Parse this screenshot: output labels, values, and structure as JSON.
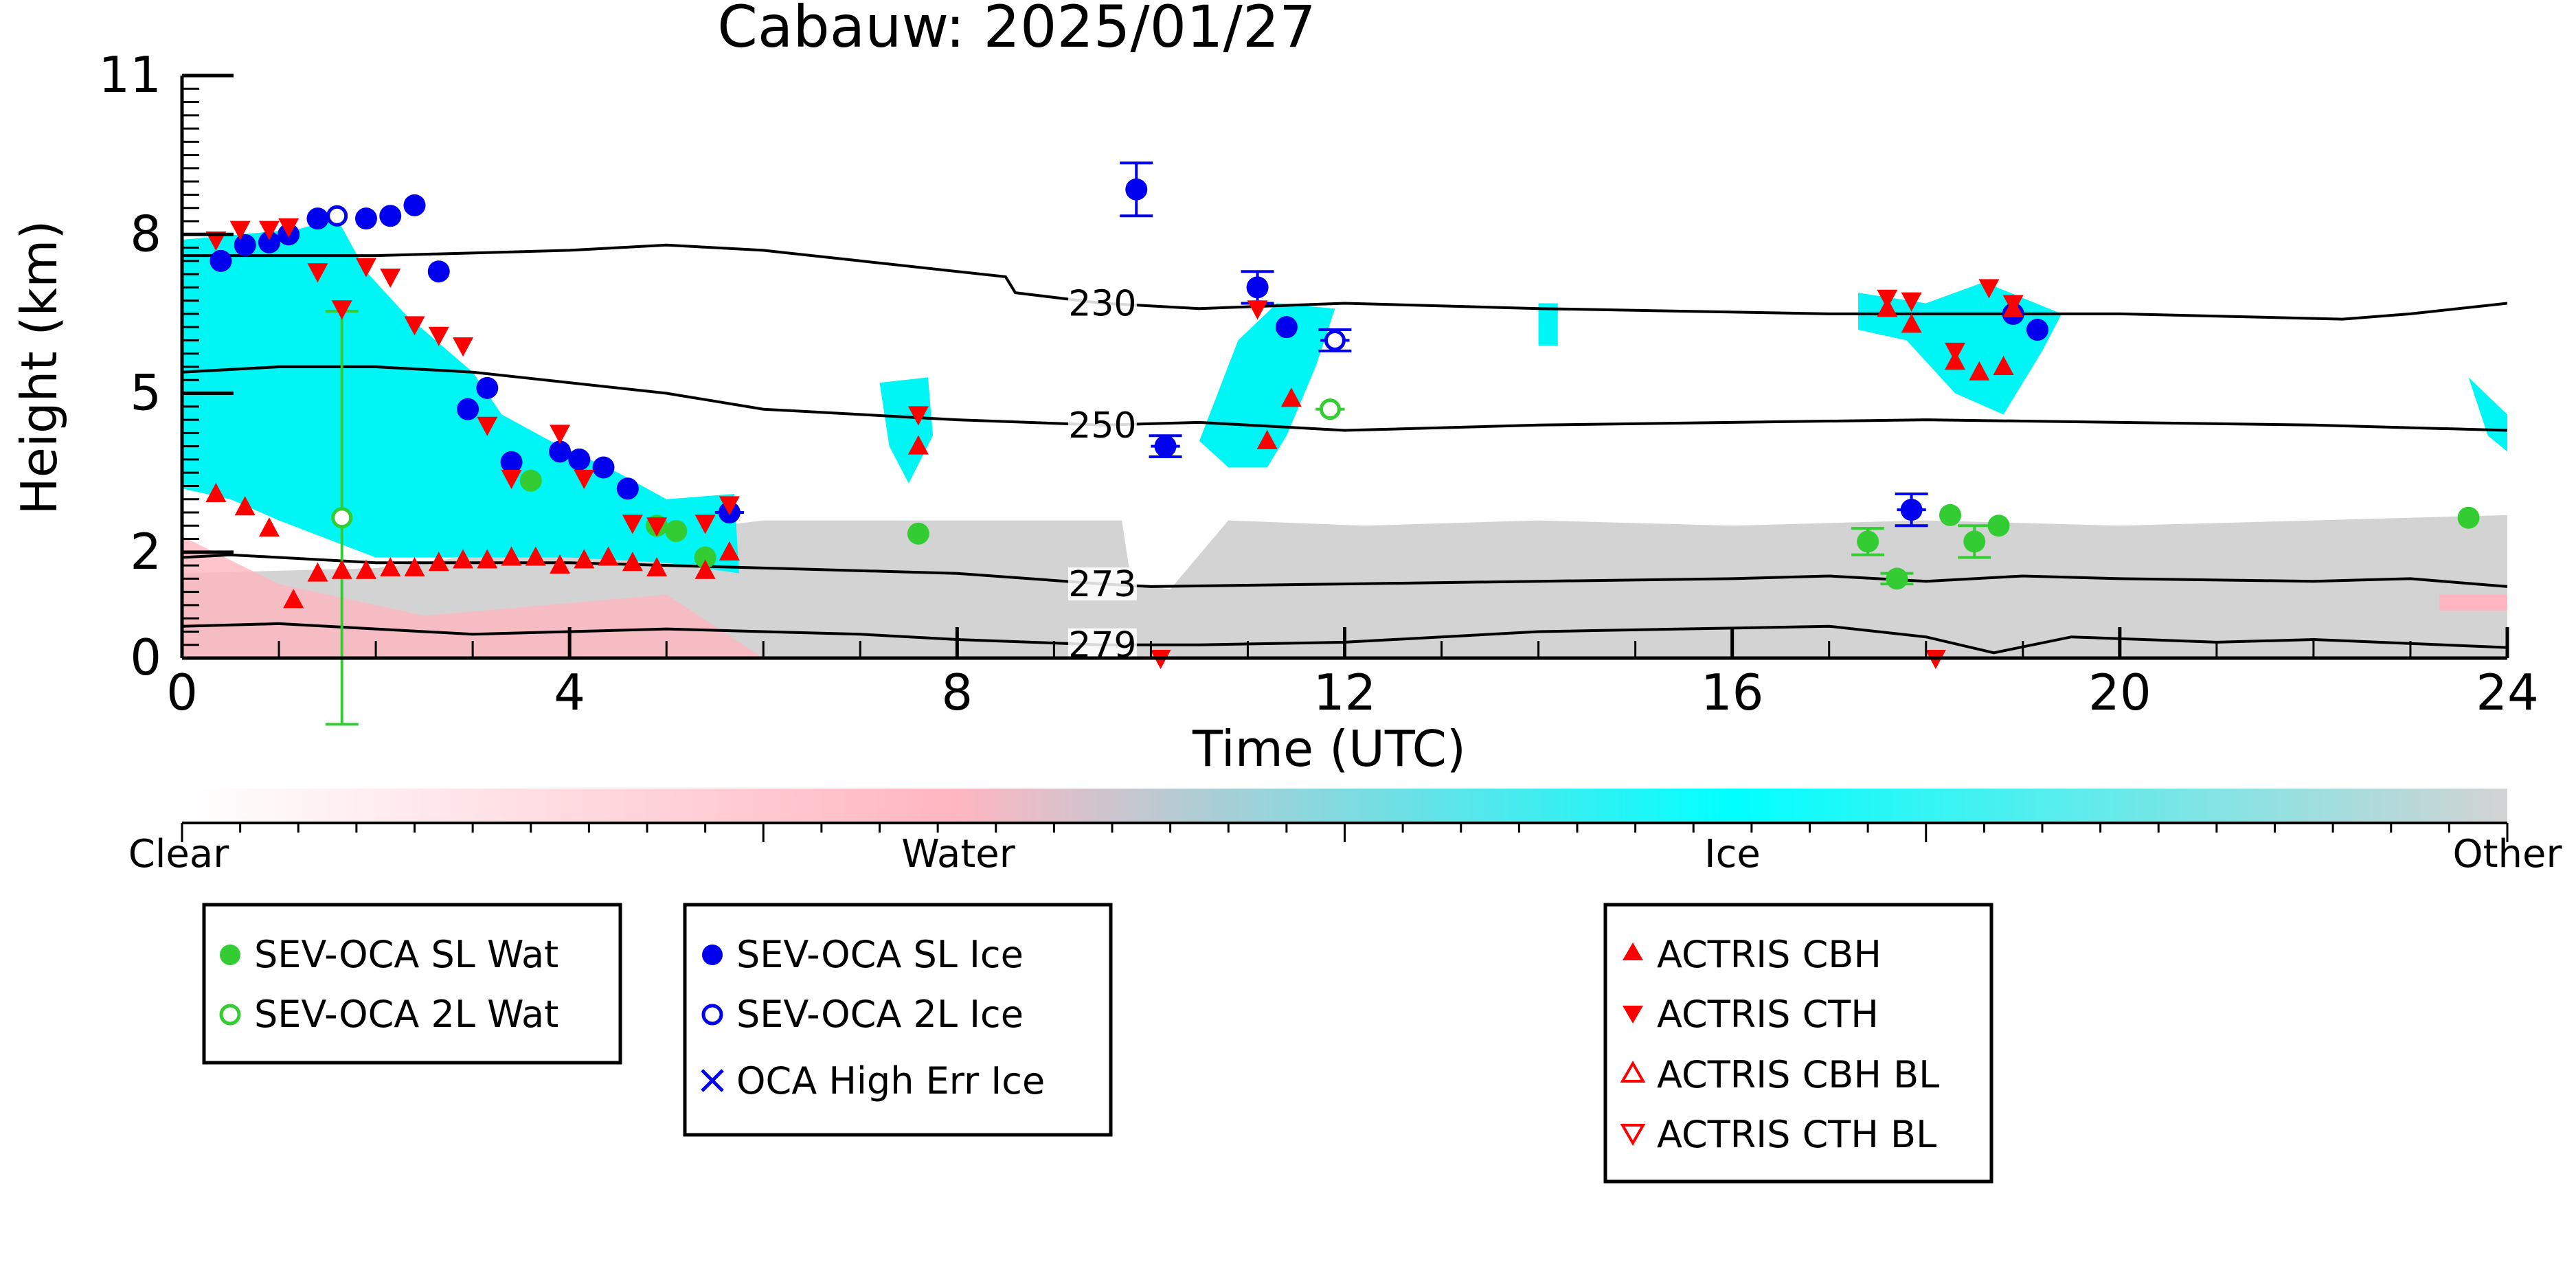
{
  "chart_data": {
    "type": "scatter",
    "title": "Cabauw: 2025/01/27",
    "xlabel": "Time (UTC)",
    "ylabel": "Height (km)",
    "xlim": [
      0,
      24
    ],
    "ylim": [
      0,
      11
    ],
    "x_ticks": [
      0,
      4,
      8,
      12,
      16,
      20,
      24
    ],
    "y_ticks": [
      0,
      2,
      5,
      8,
      11
    ],
    "x_tick_labels": [
      "0",
      "4",
      "8",
      "12",
      "16",
      "20",
      "24"
    ],
    "y_tick_labels": [
      "0",
      "2",
      "5",
      "8",
      "11"
    ],
    "colorbar": {
      "labels": [
        "Clear",
        "Water",
        "Ice",
        "Other"
      ],
      "colors": [
        "#ffffff",
        "#ffb6c1",
        "#00ffff",
        "#d3d3d3"
      ]
    },
    "colors": {
      "sl_wat": "#33cc33",
      "sl_ice": "#0000ee",
      "actris": "#ff0000",
      "ice_fill": "#00f5f5",
      "other_fill": "#d3d3d3",
      "water_fill": "#ffb6c1"
    },
    "isotherm_labels": [
      "230",
      "250",
      "273",
      "279"
    ],
    "isotherms": [
      {
        "label": "230",
        "label_x": 9.5,
        "points": [
          [
            0,
            7.6
          ],
          [
            2,
            7.6
          ],
          [
            4,
            7.7
          ],
          [
            5,
            7.8
          ],
          [
            6,
            7.7
          ],
          [
            7,
            7.5
          ],
          [
            8.5,
            7.2
          ],
          [
            8.6,
            6.9
          ],
          [
            9.5,
            6.7
          ],
          [
            10.5,
            6.6
          ],
          [
            12,
            6.7
          ],
          [
            14,
            6.6
          ],
          [
            17,
            6.5
          ],
          [
            18,
            6.5
          ],
          [
            20,
            6.5
          ],
          [
            22.3,
            6.4
          ],
          [
            23,
            6.5
          ],
          [
            24,
            6.7
          ]
        ]
      },
      {
        "label": "250",
        "label_x": 9.5,
        "points": [
          [
            0,
            5.4
          ],
          [
            1,
            5.5
          ],
          [
            2,
            5.5
          ],
          [
            3,
            5.4
          ],
          [
            4,
            5.2
          ],
          [
            5,
            5.0
          ],
          [
            6,
            4.7
          ],
          [
            7,
            4.6
          ],
          [
            8,
            4.5
          ],
          [
            9.5,
            4.4
          ],
          [
            10.5,
            4.45
          ],
          [
            12,
            4.3
          ],
          [
            14,
            4.4
          ],
          [
            16,
            4.45
          ],
          [
            18,
            4.5
          ],
          [
            20,
            4.45
          ],
          [
            22,
            4.4
          ],
          [
            24,
            4.3
          ]
        ]
      },
      {
        "label": "273",
        "label_x": 9.5,
        "points": [
          [
            0,
            1.9
          ],
          [
            0.5,
            1.95
          ],
          [
            2,
            1.8
          ],
          [
            4,
            1.8
          ],
          [
            6,
            1.7
          ],
          [
            8,
            1.6
          ],
          [
            9.5,
            1.4
          ],
          [
            10,
            1.35
          ],
          [
            12,
            1.4
          ],
          [
            14,
            1.45
          ],
          [
            16,
            1.5
          ],
          [
            17,
            1.55
          ],
          [
            18,
            1.45
          ],
          [
            19,
            1.55
          ],
          [
            20,
            1.5
          ],
          [
            22,
            1.45
          ],
          [
            23,
            1.5
          ],
          [
            24,
            1.35
          ]
        ]
      },
      {
        "label": "279",
        "label_x": 9.5,
        "points": [
          [
            0,
            0.6
          ],
          [
            1,
            0.65
          ],
          [
            2,
            0.55
          ],
          [
            3,
            0.45
          ],
          [
            4,
            0.5
          ],
          [
            5,
            0.55
          ],
          [
            6,
            0.5
          ],
          [
            7,
            0.45
          ],
          [
            8,
            0.35
          ],
          [
            9.5,
            0.25
          ],
          [
            10.5,
            0.25
          ],
          [
            12,
            0.3
          ],
          [
            14,
            0.5
          ],
          [
            17,
            0.6
          ],
          [
            18,
            0.4
          ],
          [
            18.7,
            0.1
          ],
          [
            19.5,
            0.4
          ],
          [
            21,
            0.3
          ],
          [
            22,
            0.35
          ],
          [
            24,
            0.2
          ]
        ]
      }
    ],
    "series": [
      {
        "name": "SEV-OCA SL Wat",
        "marker": "circle",
        "filled": true,
        "color": "#33cc33",
        "points": [
          [
            3.6,
            3.35,
            0.1,
            0
          ],
          [
            4.9,
            2.5,
            0,
            0
          ],
          [
            5.1,
            2.4,
            0,
            0
          ],
          [
            5.4,
            1.9,
            0.1,
            0
          ],
          [
            7.6,
            2.35,
            0,
            0
          ],
          [
            17.4,
            2.2,
            0,
            0.25
          ],
          [
            17.7,
            1.5,
            0,
            0.1
          ],
          [
            18.25,
            2.7,
            0,
            0
          ],
          [
            18.5,
            2.2,
            0,
            0.3
          ],
          [
            18.75,
            2.5,
            0,
            0
          ],
          [
            23.6,
            2.65,
            0,
            0
          ]
        ]
      },
      {
        "name": "SEV-OCA 2L Wat",
        "marker": "circle",
        "filled": false,
        "color": "#33cc33",
        "points": [
          [
            1.65,
            2.65,
            0,
            3.9
          ],
          [
            11.85,
            4.7,
            0.15,
            0
          ]
        ]
      },
      {
        "name": "SEV-OCA SL Ice",
        "marker": "circle",
        "filled": true,
        "color": "#0000ee",
        "points": [
          [
            0.4,
            7.5,
            0,
            0
          ],
          [
            0.65,
            7.8,
            0,
            0
          ],
          [
            0.9,
            7.85,
            0,
            0
          ],
          [
            1.1,
            8.0,
            0,
            0
          ],
          [
            1.4,
            8.3,
            0,
            0
          ],
          [
            1.9,
            8.3,
            0,
            0
          ],
          [
            2.15,
            8.35,
            0,
            0
          ],
          [
            2.4,
            8.55,
            0,
            0
          ],
          [
            2.65,
            7.3,
            0,
            0
          ],
          [
            2.95,
            4.7,
            0,
            0
          ],
          [
            3.15,
            5.1,
            0,
            0
          ],
          [
            3.4,
            3.7,
            0,
            0
          ],
          [
            3.9,
            3.9,
            0,
            0
          ],
          [
            4.1,
            3.75,
            0,
            0
          ],
          [
            4.35,
            3.6,
            0,
            0
          ],
          [
            4.6,
            3.2,
            0,
            0
          ],
          [
            5.65,
            2.75,
            0.15,
            0
          ],
          [
            9.85,
            8.85,
            0,
            0.5
          ],
          [
            10.15,
            4.0,
            0.15,
            0.2
          ],
          [
            11.1,
            7.0,
            0,
            0.3
          ],
          [
            11.4,
            6.25,
            0.1,
            0
          ],
          [
            17.85,
            2.8,
            0.15,
            0.3
          ],
          [
            18.9,
            6.5,
            0,
            0
          ],
          [
            19.15,
            6.2,
            0,
            0
          ]
        ]
      },
      {
        "name": "SEV-OCA 2L Ice",
        "marker": "circle",
        "filled": false,
        "color": "#0000ee",
        "points": [
          [
            1.6,
            8.35,
            0,
            0
          ],
          [
            11.9,
            6.0,
            0.15,
            0.2
          ]
        ]
      },
      {
        "name": "OCA High Err Ice",
        "marker": "x",
        "filled": false,
        "color": "#0000ee",
        "points": []
      },
      {
        "name": "ACTRIS CBH",
        "marker": "triangle-up",
        "filled": true,
        "color": "#ff0000",
        "points": [
          [
            0.35,
            3.1
          ],
          [
            0.65,
            2.85
          ],
          [
            0.9,
            2.45
          ],
          [
            1.15,
            1.1
          ],
          [
            1.4,
            1.6
          ],
          [
            1.65,
            1.65
          ],
          [
            1.9,
            1.65
          ],
          [
            2.15,
            1.7
          ],
          [
            2.4,
            1.7
          ],
          [
            2.65,
            1.8
          ],
          [
            2.9,
            1.85
          ],
          [
            3.15,
            1.85
          ],
          [
            3.4,
            1.9
          ],
          [
            3.65,
            1.9
          ],
          [
            3.9,
            1.75
          ],
          [
            4.15,
            1.85
          ],
          [
            4.4,
            1.9
          ],
          [
            4.65,
            1.8
          ],
          [
            4.9,
            1.7
          ],
          [
            5.4,
            1.65
          ],
          [
            5.65,
            2.0
          ],
          [
            7.6,
            4.0
          ],
          [
            11.2,
            4.1
          ],
          [
            11.45,
            4.9
          ],
          [
            17.6,
            6.6
          ],
          [
            17.85,
            6.3
          ],
          [
            18.3,
            5.6
          ],
          [
            18.55,
            5.4
          ],
          [
            18.8,
            5.5
          ],
          [
            18.9,
            6.6
          ]
        ]
      },
      {
        "name": "ACTRIS CTH",
        "marker": "triangle-down",
        "filled": true,
        "color": "#ff0000",
        "points": [
          [
            0.35,
            7.9
          ],
          [
            0.6,
            8.1
          ],
          [
            0.9,
            8.1
          ],
          [
            1.1,
            8.15
          ],
          [
            1.4,
            7.3
          ],
          [
            1.65,
            6.6
          ],
          [
            1.9,
            7.4
          ],
          [
            2.15,
            7.2
          ],
          [
            2.4,
            6.3
          ],
          [
            2.65,
            6.1
          ],
          [
            2.9,
            5.9
          ],
          [
            3.15,
            4.4
          ],
          [
            3.4,
            3.4
          ],
          [
            3.9,
            4.25
          ],
          [
            4.15,
            3.4
          ],
          [
            4.65,
            2.55
          ],
          [
            4.9,
            2.5
          ],
          [
            5.4,
            2.55
          ],
          [
            5.65,
            2.9
          ],
          [
            7.6,
            4.6
          ],
          [
            11.1,
            6.6
          ],
          [
            17.6,
            6.8
          ],
          [
            17.85,
            6.75
          ],
          [
            18.3,
            5.8
          ],
          [
            18.65,
            7.0
          ],
          [
            18.9,
            6.7
          ],
          [
            10.1,
            0.0
          ],
          [
            18.1,
            0.0
          ]
        ]
      },
      {
        "name": "ACTRIS CBH BL",
        "marker": "triangle-up",
        "filled": false,
        "color": "#ff0000",
        "points": []
      },
      {
        "name": "ACTRIS CTH BL",
        "marker": "triangle-down",
        "filled": false,
        "color": "#ff0000",
        "points": []
      }
    ],
    "legend_placement": "below plot, three boxes"
  }
}
